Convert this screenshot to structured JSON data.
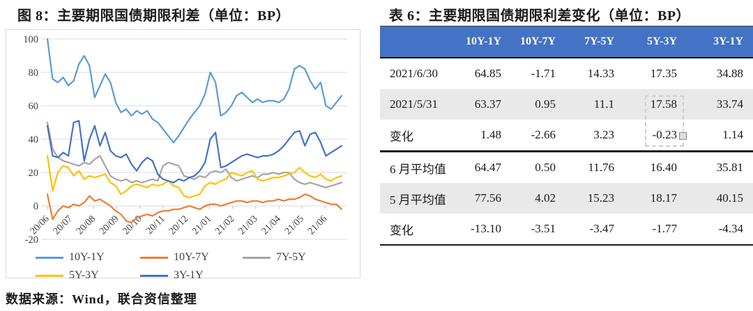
{
  "figure": {
    "title": "图 8：主要期限国债期限利差（单位：BP）",
    "source": "数据来源：Wind，联合资信整理"
  },
  "chart_data": {
    "type": "line",
    "title": "主要期限国债期限利差（单位：BP）",
    "grid": true,
    "legend_position": "bottom",
    "ylim": [
      -20,
      100
    ],
    "y_ticks": [
      100,
      80,
      60,
      40,
      20,
      0,
      -20
    ],
    "x_tick_labels": [
      "20/06",
      "20/07",
      "20/08",
      "20/09",
      "20/10",
      "20/11",
      "20/12",
      "21/01",
      "21/02",
      "21/03",
      "21/04",
      "21/05",
      "21/06"
    ],
    "gridline_color": "#d9d9d9",
    "axis_label_color": "#404040",
    "series": [
      {
        "name": "10Y-1Y",
        "color": "#5b9bd5",
        "values": [
          100,
          76,
          74,
          77,
          72,
          75,
          85,
          90,
          84,
          65,
          72,
          79,
          74,
          62,
          56,
          58,
          54,
          57,
          55,
          57,
          52,
          50,
          46,
          42,
          38,
          42,
          47,
          52,
          56,
          60,
          67,
          80,
          74,
          54,
          56,
          60,
          66,
          68,
          65,
          62,
          64,
          62,
          63,
          63,
          62,
          64,
          70,
          82,
          84,
          82,
          75,
          70,
          74,
          60,
          58,
          62,
          66
        ]
      },
      {
        "name": "10Y-7Y",
        "color": "#ed7d31",
        "values": [
          7,
          -8,
          -3,
          0,
          -1,
          1,
          0,
          2,
          6,
          3,
          4,
          2,
          0,
          -3,
          -5,
          -9,
          -10,
          -7,
          -6,
          -5,
          -6,
          -4,
          -3,
          -3,
          -2,
          -2,
          -1,
          0,
          -1,
          -2,
          0,
          1,
          1,
          0,
          1,
          2,
          3,
          3,
          2,
          3,
          3,
          2,
          3,
          3,
          4,
          3,
          4,
          4,
          5,
          7,
          6,
          4,
          3,
          2,
          1,
          1,
          -2
        ]
      },
      {
        "name": "7Y-5Y",
        "color": "#a5a5a5",
        "values": [
          50,
          34,
          29,
          27,
          26,
          25,
          24,
          26,
          25,
          28,
          30,
          24,
          18,
          16,
          15,
          16,
          14,
          15,
          14,
          15,
          16,
          15,
          24,
          26,
          25,
          24,
          18,
          17,
          16,
          18,
          17,
          20,
          21,
          20,
          22,
          17,
          15,
          16,
          17,
          18,
          17,
          19,
          19,
          20,
          19,
          20,
          20,
          16,
          14,
          13,
          14,
          13,
          12,
          11,
          12,
          13,
          14
        ]
      },
      {
        "name": "5Y-3Y",
        "color": "#ffc000",
        "values": [
          30,
          9,
          20,
          24,
          23,
          18,
          21,
          16,
          18,
          17,
          18,
          19,
          14,
          12,
          7,
          9,
          12,
          13,
          12,
          11,
          13,
          12,
          13,
          15,
          12,
          11,
          6,
          5,
          6,
          7,
          12,
          14,
          13,
          15,
          16,
          20,
          19,
          18,
          20,
          21,
          16,
          15,
          16,
          17,
          17,
          18,
          19,
          20,
          23,
          20,
          18,
          17,
          19,
          16,
          15,
          17,
          18
        ]
      },
      {
        "name": "3Y-1Y",
        "color": "#4472c4",
        "values": [
          48,
          30,
          29,
          32,
          30,
          50,
          51,
          27,
          40,
          48,
          36,
          44,
          33,
          30,
          29,
          31,
          25,
          21,
          26,
          29,
          27,
          19,
          16,
          15,
          14,
          16,
          15,
          17,
          18,
          21,
          26,
          40,
          44,
          23,
          24,
          26,
          28,
          30,
          31,
          30,
          29,
          30,
          30,
          31,
          33,
          36,
          40,
          44,
          45,
          36,
          43,
          44,
          38,
          30,
          32,
          34,
          36
        ]
      }
    ]
  },
  "table": {
    "title": "表 6：主要期限国债期限利差变化（单位：BP）",
    "header_bg": "#4472c4",
    "shaded_row_bg": "#e9e9e9",
    "columns": [
      "10Y-1Y",
      "10Y-7Y",
      "7Y-5Y",
      "5Y-3Y",
      "3Y-1Y"
    ],
    "rows": [
      {
        "label": "2021/6/30",
        "values": [
          "64.85",
          "-1.71",
          "14.33",
          "17.35",
          "34.88"
        ],
        "shaded": false,
        "section_start": false
      },
      {
        "label": "2021/5/31",
        "values": [
          "63.37",
          "0.95",
          "11.1",
          "17.58",
          "33.74"
        ],
        "shaded": true,
        "section_start": false
      },
      {
        "label": "变化",
        "values": [
          "1.48",
          "-2.66",
          "3.23",
          "-0.23",
          "1.14"
        ],
        "shaded": false,
        "section_start": false
      },
      {
        "label": "6 月平均值",
        "values": [
          "64.47",
          "0.50",
          "11.76",
          "16.40",
          "35.81"
        ],
        "shaded": false,
        "section_start": true
      },
      {
        "label": "5 月平均值",
        "values": [
          "77.56",
          "4.02",
          "15.23",
          "18.17",
          "40.15"
        ],
        "shaded": true,
        "section_start": false
      },
      {
        "label": "变化",
        "values": [
          "-13.10",
          "-3.51",
          "-3.47",
          "-1.77",
          "-4.34"
        ],
        "shaded": false,
        "section_start": false
      }
    ]
  }
}
